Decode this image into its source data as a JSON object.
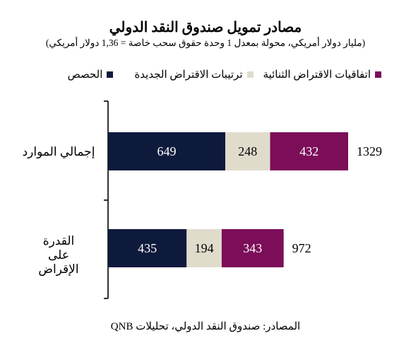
{
  "chart_data": {
    "type": "bar",
    "stacked": true,
    "orientation": "horizontal",
    "title": "مصادر تمويل صندوق النقد الدولي",
    "subtitle": "(مليار دولار أمريكي، محولة بمعدل 1 وحدة حقوق سحب خاصة = 1,36 دولار أمريكي)",
    "categories": [
      "إجمالي الموارد",
      "القدرة على الإقراض"
    ],
    "series": [
      {
        "name": "الحصص",
        "color": "#0e1a3c",
        "values": [
          649,
          435
        ]
      },
      {
        "name": "ترتيبات الاقتراض الجديدة",
        "color": "#e0dccc",
        "values": [
          248,
          194
        ]
      },
      {
        "name": "اتفاقيات الاقتراض الثنائية",
        "color": "#7c0d58",
        "values": [
          432,
          343
        ]
      }
    ],
    "totals": [
      1329,
      972
    ],
    "xlim": [
      0,
      1500
    ],
    "grid": false,
    "legend_position": "top"
  },
  "source": "المصادر: صندوق النقد الدولي، تحليلات QNB"
}
